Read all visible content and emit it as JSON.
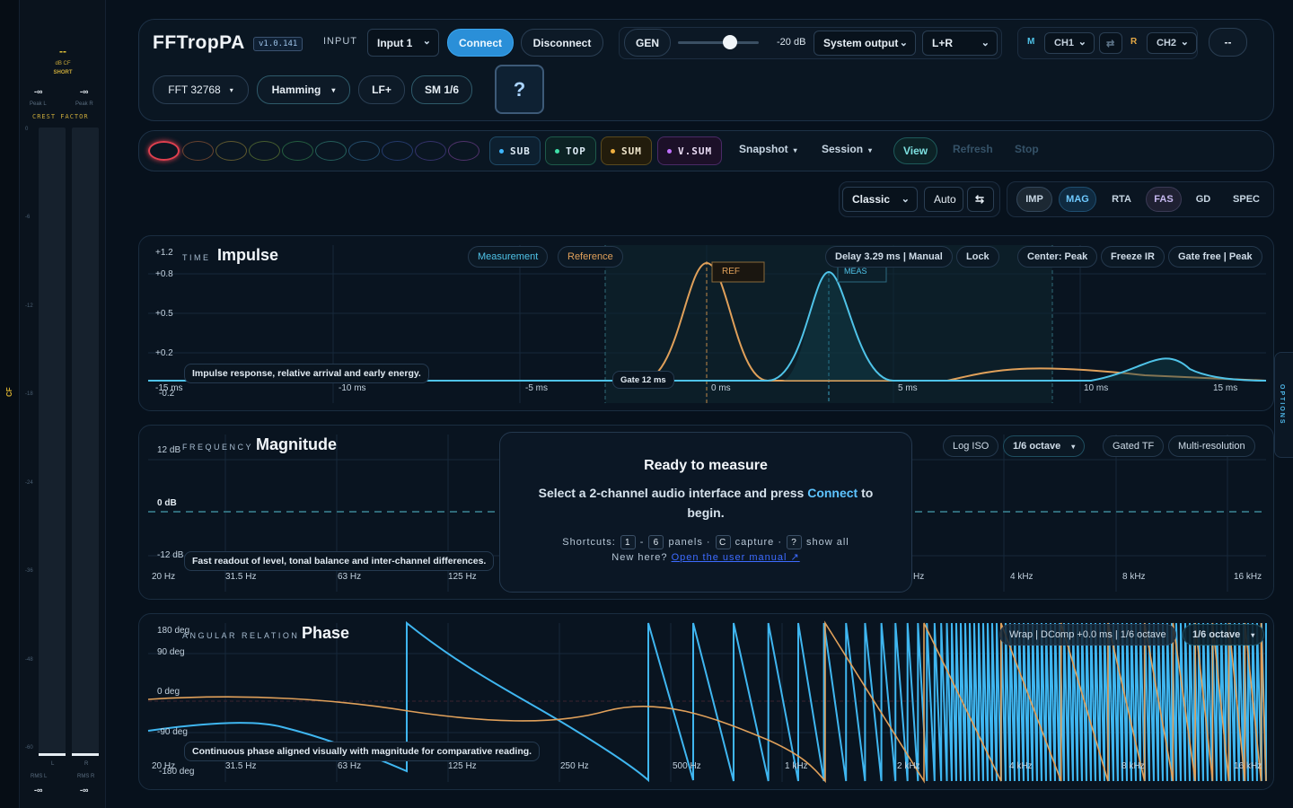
{
  "meters": {
    "peak_top": "--",
    "mode": "dB CF",
    "mode2": "SHORT",
    "peak_l_value": "-∞",
    "peak_r_value": "-∞",
    "peak_l_label": "Peak L",
    "peak_r_label": "Peak R",
    "crest_factor": "CREST FACTOR",
    "scale": [
      "0",
      "-6",
      "-12",
      "-18",
      "-24",
      "-36",
      "-48",
      "-60"
    ],
    "l": "L",
    "r": "R",
    "rms_l_label": "RMS L",
    "rms_r_label": "RMS R",
    "rms_l_value": "-∞",
    "rms_r_value": "-∞",
    "side_label": "CF"
  },
  "header": {
    "app_name": "FFTropPA",
    "version": "v1.0.141",
    "input_label": "INPUT",
    "input_value": "Input 1",
    "connect": "Connect",
    "disconnect": "Disconnect",
    "gen": "GEN",
    "gen_level": "-20 dB",
    "output_value": "System output",
    "channel_value": "L+R",
    "m_label": "M",
    "ch1": "CH1",
    "swap_icon": "⇄",
    "r_label": "R",
    "ch2": "CH2",
    "extra": "--",
    "fft": "FFT 32768",
    "window": "Hamming",
    "lf": "LF+",
    "sm": "SM 1/6",
    "help": "?"
  },
  "bar2": {
    "slot_colors": [
      "#e0404f",
      "#b86a3a",
      "#a8923a",
      "#7a9a3a",
      "#3a9a5a",
      "#3a9a8a",
      "#3a7aaa",
      "#3a5aaa",
      "#5a4aaa",
      "#8a4aaa"
    ],
    "sub": "SUB",
    "top": "TOP",
    "sum": "SUM",
    "vsum": "V.SUM",
    "snapshot": "Snapshot",
    "session": "Session",
    "view": "View",
    "refresh": "Refresh",
    "stop": "Stop"
  },
  "toolbar": {
    "style_value": "Classic",
    "auto": "Auto",
    "swap": "⇆",
    "modes": [
      "IMP",
      "MAG",
      "RTA",
      "FAS",
      "GD",
      "SPEC"
    ]
  },
  "impulse": {
    "kicker": "TIME",
    "title": "Impulse",
    "measurement": "Measurement",
    "reference": "Reference",
    "delay": "Delay 3.29 ms | Manual",
    "lock": "Lock",
    "center": "Center: Peak",
    "freeze": "Freeze IR",
    "gate_free": "Gate free | Peak",
    "y_labels": [
      "+1.2",
      "+0.8",
      "+0.5",
      "+0.2",
      "-0.2"
    ],
    "x_labels": [
      "-15 ms",
      "-10 ms",
      "-5 ms",
      "0 ms",
      "5 ms",
      "10 ms",
      "15 ms"
    ],
    "ref_tag": "REF",
    "meas_tag": "MEAS",
    "gate": "Gate 12 ms",
    "caption": "Impulse response, relative arrival and early energy."
  },
  "magnitude": {
    "kicker": "FREQUENCY",
    "title": "Magnitude",
    "log_iso": "Log ISO",
    "octave": "1/6 octave",
    "gated_tf": "Gated TF",
    "multi_res": "Multi-resolution",
    "y_labels": [
      "12 dB",
      "0 dB",
      "-12 dB"
    ],
    "x_labels": [
      "20 Hz",
      "31.5 Hz",
      "63 Hz",
      "125 Hz",
      "Hz",
      "4 kHz",
      "8 kHz",
      "16 kHz"
    ],
    "caption": "Fast readout of level, tonal balance and inter-channel differences."
  },
  "ready": {
    "title": "Ready to measure",
    "body_before": "Select a 2-channel audio interface and press",
    "body_connect": "Connect",
    "body_after": "to begin.",
    "shortcuts": "Shortcuts:",
    "k1": "1",
    "dash": "-",
    "k6": "6",
    "panels": "panels ·",
    "kc": "C",
    "capture": "capture ·",
    "kq": "?",
    "show_all": "show all",
    "new_here": "New here?",
    "manual": "Open the user manual ↗"
  },
  "phase": {
    "kicker": "ANGULAR RELATION",
    "title": "Phase",
    "wrap": "Wrap | DComp +0.0 ms | 1/6 octave",
    "octave": "1/6 octave",
    "y_labels": [
      "180 deg",
      "90 deg",
      "0 deg",
      "-90 deg",
      "-180 deg"
    ],
    "x_labels": [
      "20 Hz",
      "31.5 Hz",
      "63 Hz",
      "125 Hz",
      "250 Hz",
      "500 Hz",
      "1 kHz",
      "2 kHz",
      "4 kHz",
      "8 kHz",
      "16 kHz"
    ],
    "caption": "Continuous phase aligned visually with magnitude for comparative reading."
  },
  "options": "OPTIONS",
  "colors": {
    "measurement": "#4fc3e8",
    "reference": "#e0a05a",
    "accent": "#2a8fd8"
  }
}
